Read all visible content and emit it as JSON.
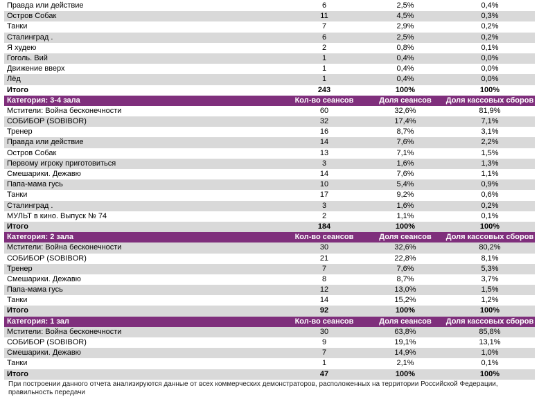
{
  "columns": {
    "count": "Кол-во сеансов",
    "session_share": "Доля сеансов",
    "box_share": "Доля кассовых сборов"
  },
  "total_label": "Итого",
  "sections": [
    {
      "title": "",
      "rows": [
        [
          "Правда или действие",
          "6",
          "2,5%",
          "0,4%"
        ],
        [
          "Остров Собак",
          "11",
          "4,5%",
          "0,3%"
        ],
        [
          "Танки",
          "7",
          "2,9%",
          "0,2%"
        ],
        [
          "Сталинград .",
          "6",
          "2,5%",
          "0,2%"
        ],
        [
          "Я худею",
          "2",
          "0,8%",
          "0,1%"
        ],
        [
          "Гоголь. Вий",
          "1",
          "0,4%",
          "0,0%"
        ],
        [
          "Движение вверх",
          "1",
          "0,4%",
          "0,0%"
        ],
        [
          "Лёд",
          "1",
          "0,4%",
          "0,0%"
        ]
      ],
      "total": [
        "243",
        "100%",
        "100%"
      ]
    },
    {
      "title": "Категория: 3-4 зала",
      "rows": [
        [
          "Мстители: Война бесконечности",
          "60",
          "32,6%",
          "81,9%"
        ],
        [
          "СОБИБОР (SOBIBOR)",
          "32",
          "17,4%",
          "7,1%"
        ],
        [
          "Тренер",
          "16",
          "8,7%",
          "3,1%"
        ],
        [
          "Правда или действие",
          "14",
          "7,6%",
          "2,2%"
        ],
        [
          "Остров Собак",
          "13",
          "7,1%",
          "1,5%"
        ],
        [
          "Первому игроку приготовиться",
          "3",
          "1,6%",
          "1,3%"
        ],
        [
          "Смешарики. Дежавю",
          "14",
          "7,6%",
          "1,1%"
        ],
        [
          "Папа-мама гусь",
          "10",
          "5,4%",
          "0,9%"
        ],
        [
          "Танки",
          "17",
          "9,2%",
          "0,6%"
        ],
        [
          "Сталинград .",
          "3",
          "1,6%",
          "0,2%"
        ],
        [
          "МУЛЬТ в кино. Выпуск № 74",
          "2",
          "1,1%",
          "0,1%"
        ]
      ],
      "total": [
        "184",
        "100%",
        "100%"
      ]
    },
    {
      "title": "Категория: 2 зала",
      "rows": [
        [
          "Мстители: Война бесконечности",
          "30",
          "32,6%",
          "80,2%"
        ],
        [
          "СОБИБОР (SOBIBOR)",
          "21",
          "22,8%",
          "8,1%"
        ],
        [
          "Тренер",
          "7",
          "7,6%",
          "5,3%"
        ],
        [
          "Смешарики. Дежавю",
          "8",
          "8,7%",
          "3,7%"
        ],
        [
          "Папа-мама гусь",
          "12",
          "13,0%",
          "1,5%"
        ],
        [
          "Танки",
          "14",
          "15,2%",
          "1,2%"
        ]
      ],
      "total": [
        "92",
        "100%",
        "100%"
      ]
    },
    {
      "title": "Категория: 1 зал",
      "rows": [
        [
          "Мстители: Война бесконечности",
          "30",
          "63,8%",
          "85,8%"
        ],
        [
          "СОБИБОР (SOBIBOR)",
          "9",
          "19,1%",
          "13,1%"
        ],
        [
          "Смешарики. Дежавю",
          "7",
          "14,9%",
          "1,0%"
        ],
        [
          "Танки",
          "1",
          "2,1%",
          "0,1%"
        ]
      ],
      "total": [
        "47",
        "100%",
        "100%"
      ]
    }
  ],
  "footer": "При построении данного отчета анализируются данные от всех коммерческих демонстраторов, расположенных на территории Российской Федерации, правильность передачи",
  "colors": {
    "header": "#7f2f7c",
    "stripe": "#d9d9d9"
  }
}
